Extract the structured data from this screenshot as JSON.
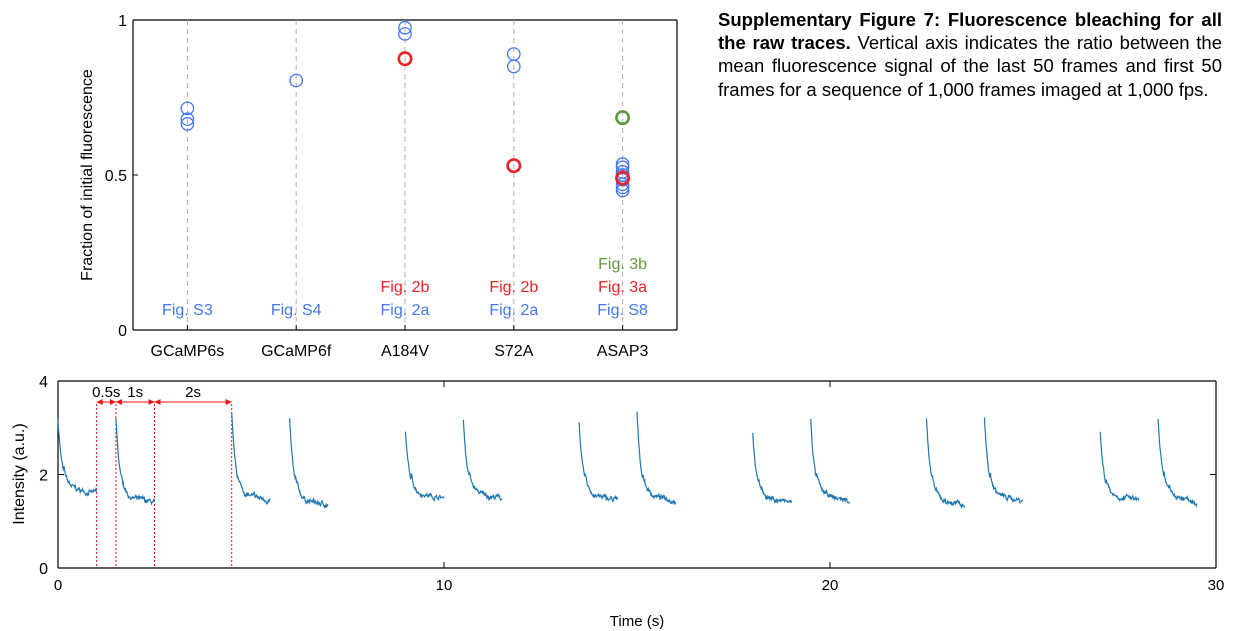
{
  "caption": {
    "title": "Supplementary Figure 7: Fluorescence bleaching for all the raw traces.",
    "body": " Vertical axis indicates the ratio between the mean fluorescence signal of the last 50 frames and first 50 frames for a sequence of 1,000 frames imaged at 1,000 fps."
  },
  "colors": {
    "blue": "#4477ee",
    "red": "#ee2222",
    "green": "#5e9a3a",
    "trace": "#1f77b4",
    "annot": "#ee1111",
    "grid": "#b0b0b0"
  },
  "chart_data": [
    {
      "type": "scatter",
      "title": "",
      "xlabel": "",
      "ylabel": "Fraction of initial fluorescence",
      "ylim": [
        0,
        1
      ],
      "yticks": [
        "0",
        "0.5",
        "1"
      ],
      "grid": "vertical dashed lines at each category",
      "categories": [
        "GCaMP6s",
        "GCaMP6f",
        "A184V",
        "S72A",
        "ASAP3"
      ],
      "series": [
        {
          "color": "blue",
          "points": [
            {
              "category": "GCaMP6s",
              "y": 0.715
            },
            {
              "category": "GCaMP6s",
              "y": 0.68
            },
            {
              "category": "GCaMP6s",
              "y": 0.665
            },
            {
              "category": "GCaMP6f",
              "y": 0.805
            },
            {
              "category": "A184V",
              "y": 0.975
            },
            {
              "category": "A184V",
              "y": 0.955
            },
            {
              "category": "S72A",
              "y": 0.89
            },
            {
              "category": "S72A",
              "y": 0.85
            },
            {
              "category": "ASAP3",
              "y": 0.535
            },
            {
              "category": "ASAP3",
              "y": 0.525
            },
            {
              "category": "ASAP3",
              "y": 0.51
            },
            {
              "category": "ASAP3",
              "y": 0.5
            },
            {
              "category": "ASAP3",
              "y": 0.485
            },
            {
              "category": "ASAP3",
              "y": 0.47
            },
            {
              "category": "ASAP3",
              "y": 0.46
            },
            {
              "category": "ASAP3",
              "y": 0.45
            }
          ]
        },
        {
          "color": "red",
          "points": [
            {
              "category": "A184V",
              "y": 0.875
            },
            {
              "category": "S72A",
              "y": 0.53
            },
            {
              "category": "ASAP3",
              "y": 0.49
            }
          ]
        },
        {
          "color": "green",
          "points": [
            {
              "category": "ASAP3",
              "y": 0.685
            }
          ]
        }
      ],
      "annotations": [
        {
          "category": "GCaMP6s",
          "lines": [
            {
              "text": "Fig. S3",
              "color": "blue"
            }
          ]
        },
        {
          "category": "GCaMP6f",
          "lines": [
            {
              "text": "Fig. S4",
              "color": "blue"
            }
          ]
        },
        {
          "category": "A184V",
          "lines": [
            {
              "text": "Fig. 2b",
              "color": "red"
            },
            {
              "text": "Fig. 2a",
              "color": "blue"
            }
          ]
        },
        {
          "category": "S72A",
          "lines": [
            {
              "text": "Fig. 2b",
              "color": "red"
            },
            {
              "text": "Fig. 2a",
              "color": "blue"
            }
          ]
        },
        {
          "category": "ASAP3",
          "lines": [
            {
              "text": "Fig. 3b",
              "color": "green"
            },
            {
              "text": "Fig. 3a",
              "color": "red"
            },
            {
              "text": "Fig. S8",
              "color": "blue"
            }
          ]
        }
      ]
    },
    {
      "type": "line",
      "title": "",
      "xlabel": "Time (s)",
      "ylabel": "Intensity (a.u.)",
      "xlim": [
        0,
        30
      ],
      "ylim": [
        0,
        4
      ],
      "xticks": [
        "0",
        "10",
        "20",
        "30"
      ],
      "yticks": [
        "0",
        "2",
        "4"
      ],
      "segments": [
        {
          "start": 0.0,
          "end": 1.0,
          "peak": 3.2,
          "floor": 1.6
        },
        {
          "start": 1.5,
          "end": 2.5,
          "peak": 3.2,
          "floor": 1.4
        },
        {
          "start": 4.5,
          "end": 5.5,
          "peak": 3.3,
          "floor": 1.45
        },
        {
          "start": 6.0,
          "end": 7.0,
          "peak": 3.2,
          "floor": 1.35
        },
        {
          "start": 9.0,
          "end": 10.0,
          "peak": 2.9,
          "floor": 1.5
        },
        {
          "start": 10.5,
          "end": 11.5,
          "peak": 3.2,
          "floor": 1.5
        },
        {
          "start": 13.5,
          "end": 14.5,
          "peak": 3.1,
          "floor": 1.45
        },
        {
          "start": 15.0,
          "end": 16.0,
          "peak": 3.3,
          "floor": 1.45
        },
        {
          "start": 18.0,
          "end": 19.0,
          "peak": 2.9,
          "floor": 1.4
        },
        {
          "start": 19.5,
          "end": 20.5,
          "peak": 3.2,
          "floor": 1.45
        },
        {
          "start": 22.5,
          "end": 23.5,
          "peak": 3.2,
          "floor": 1.35
        },
        {
          "start": 24.0,
          "end": 25.0,
          "peak": 3.2,
          "floor": 1.45
        },
        {
          "start": 27.0,
          "end": 28.0,
          "peak": 2.9,
          "floor": 1.45
        },
        {
          "start": 28.5,
          "end": 29.5,
          "peak": 3.2,
          "floor": 1.45
        }
      ],
      "markers": [
        1.0,
        1.5,
        2.5,
        4.5
      ],
      "intervals": [
        {
          "from": 1.0,
          "to": 1.5,
          "label": "0.5s"
        },
        {
          "from": 1.5,
          "to": 2.5,
          "label": "1s"
        },
        {
          "from": 2.5,
          "to": 4.5,
          "label": "2s"
        }
      ]
    }
  ]
}
